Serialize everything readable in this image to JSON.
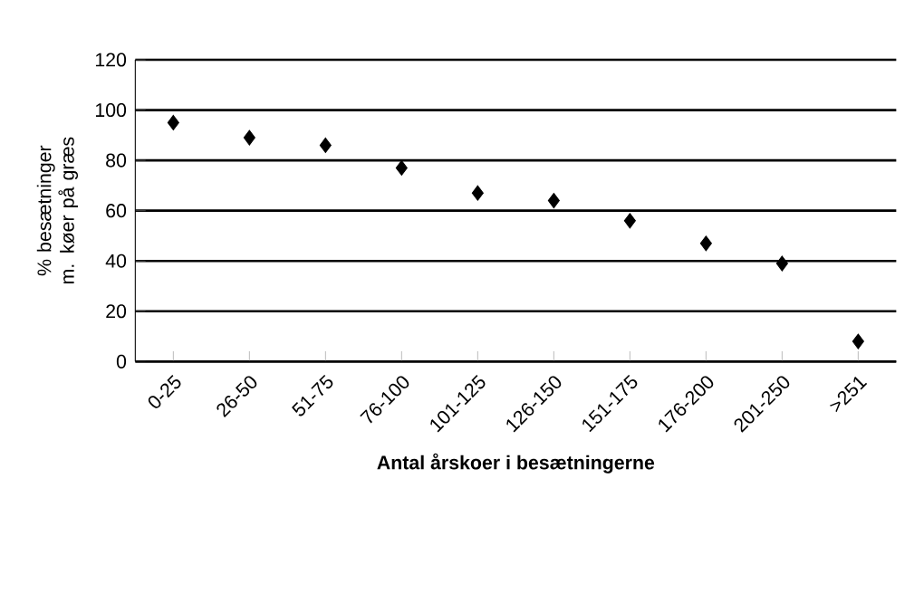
{
  "chart_data": {
    "type": "scatter",
    "xlabel": "Antal årskoer i besætningerne",
    "ylabel": "% besætninger m. køer på græs",
    "categories": [
      "0-25",
      "26-50",
      "51-75",
      "76-100",
      "101-125",
      "126-150",
      "151-175",
      "176-200",
      "201-250",
      ">251"
    ],
    "values": [
      95,
      89,
      86,
      77,
      67,
      64,
      56,
      47,
      39,
      8
    ],
    "color": "#000000",
    "marker": "diamond",
    "ylim": [
      0,
      120
    ],
    "yticks": [
      0,
      20,
      40,
      60,
      80,
      100,
      120
    ],
    "grid": "y"
  }
}
